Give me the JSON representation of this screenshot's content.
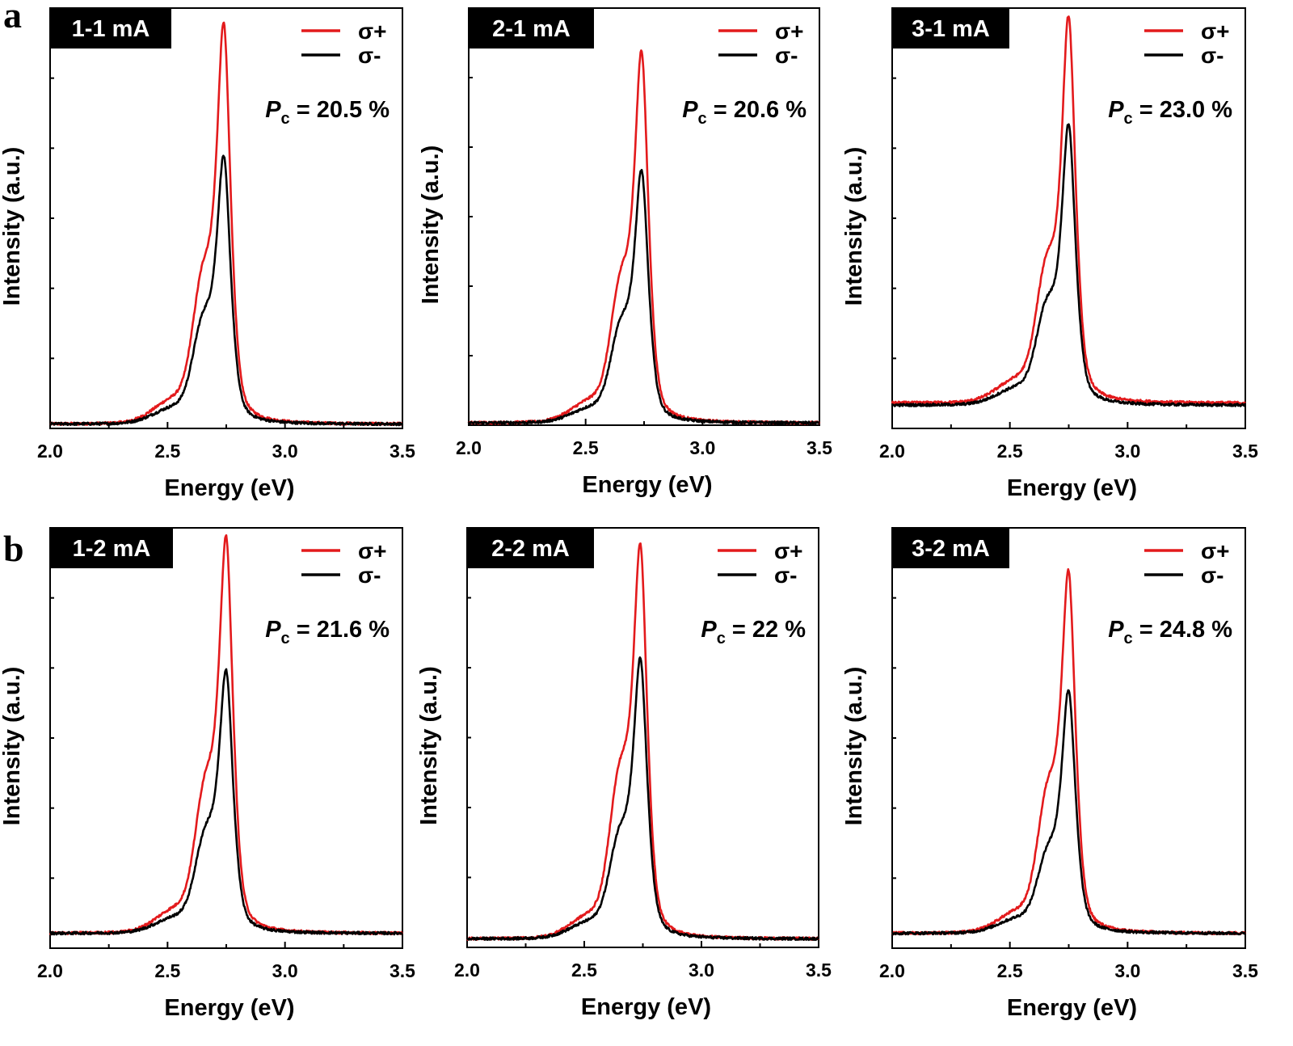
{
  "figure": {
    "panel_labels": [
      "a",
      "b"
    ],
    "colors": {
      "sigma_plus": "#e31a1c",
      "sigma_minus": "#000000",
      "tag_background": "#000000",
      "frame": "#000000"
    }
  },
  "chart_data": [
    {
      "type": "line",
      "panel": "a",
      "tag": "1-1 mA",
      "xlabel": "Energy (eV)",
      "ylabel": "Intensity (a.u.)",
      "xlim": [
        2.0,
        3.5
      ],
      "ylim": [
        0,
        1.0
      ],
      "xticks": [
        "2.0",
        "2.5",
        "3.0",
        "3.5"
      ],
      "pc_symbol": "P",
      "pc_subscript": "c",
      "pc_value": " = 20.5 %",
      "legend": [
        "σ+",
        "σ-"
      ],
      "legend_position": "top-right",
      "grid": false,
      "series": [
        {
          "name": "σ+",
          "color": "#e31a1c",
          "peak_energy": 2.74,
          "peak": 0.9,
          "shoulder_energy": 2.655,
          "shoulder": 0.3,
          "baseline": 0.01
        },
        {
          "name": "σ-",
          "color": "#000000",
          "peak_energy": 2.74,
          "peak": 0.6,
          "shoulder_energy": 2.655,
          "shoulder": 0.21,
          "baseline": 0.01
        }
      ]
    },
    {
      "type": "line",
      "panel": "a",
      "tag": "2-1 mA",
      "xlabel": "Energy (eV)",
      "ylabel": "Intensity (a.u.)",
      "xlim": [
        2.0,
        3.5
      ],
      "ylim": [
        0,
        1.0
      ],
      "xticks": [
        "2.0",
        "2.5",
        "3.0",
        "3.5"
      ],
      "pc_symbol": "P",
      "pc_subscript": "c",
      "pc_value": " = 20.6 %",
      "legend": [
        "σ+",
        "σ-"
      ],
      "legend_position": "top-right",
      "grid": false,
      "series": [
        {
          "name": "σ+",
          "color": "#e31a1c",
          "peak_energy": 2.74,
          "peak": 0.84,
          "shoulder_energy": 2.655,
          "shoulder": 0.29,
          "baseline": 0.005
        },
        {
          "name": "σ-",
          "color": "#000000",
          "peak_energy": 2.74,
          "peak": 0.57,
          "shoulder_energy": 2.655,
          "shoulder": 0.2,
          "baseline": 0.005
        }
      ]
    },
    {
      "type": "line",
      "panel": "a",
      "tag": "3-1 mA",
      "xlabel": "Energy (eV)",
      "ylabel": "Intensity (a.u.)",
      "xlim": [
        2.0,
        3.5
      ],
      "ylim": [
        0,
        1.0
      ],
      "xticks": [
        "2.0",
        "2.5",
        "3.0",
        "3.5"
      ],
      "pc_symbol": "P",
      "pc_subscript": "c",
      "pc_value": " = 23.0 %",
      "legend": [
        "σ+",
        "σ-"
      ],
      "legend_position": "top-right",
      "grid": false,
      "series": [
        {
          "name": "σ+",
          "color": "#e31a1c",
          "peak_energy": 2.75,
          "peak": 0.88,
          "shoulder_energy": 2.66,
          "shoulder": 0.28,
          "baseline": 0.06
        },
        {
          "name": "σ-",
          "color": "#000000",
          "peak_energy": 2.75,
          "peak": 0.64,
          "shoulder_energy": 2.66,
          "shoulder": 0.2,
          "baseline": 0.055
        }
      ]
    },
    {
      "type": "line",
      "panel": "b",
      "tag": "1-2 mA",
      "xlabel": "Energy (eV)",
      "ylabel": "Intensity (a.u.)",
      "xlim": [
        2.0,
        3.5
      ],
      "ylim": [
        0,
        1.0
      ],
      "xticks": [
        "2.0",
        "2.5",
        "3.0",
        "3.5"
      ],
      "pc_symbol": "P",
      "pc_subscript": "c",
      "pc_value": " = 21.6 %",
      "legend": [
        "σ+",
        "σ-"
      ],
      "legend_position": "top-right",
      "grid": false,
      "series": [
        {
          "name": "σ+",
          "color": "#e31a1c",
          "peak_energy": 2.75,
          "peak": 0.89,
          "shoulder_energy": 2.665,
          "shoulder": 0.3,
          "baseline": 0.035
        },
        {
          "name": "σ-",
          "color": "#000000",
          "peak_energy": 2.75,
          "peak": 0.59,
          "shoulder_energy": 2.665,
          "shoulder": 0.2,
          "baseline": 0.035
        }
      ]
    },
    {
      "type": "line",
      "panel": "b",
      "tag": "2-2 mA",
      "xlabel": "Energy (eV)",
      "ylabel": "Intensity (a.u.)",
      "xlim": [
        2.0,
        3.5
      ],
      "ylim": [
        0,
        1.0
      ],
      "xticks": [
        "2.0",
        "2.5",
        "3.0",
        "3.5"
      ],
      "pc_symbol": "P",
      "pc_subscript": "c",
      "pc_value": " = 22 %",
      "legend": [
        "σ+",
        "σ-"
      ],
      "legend_position": "top-right",
      "grid": false,
      "series": [
        {
          "name": "σ+",
          "color": "#e31a1c",
          "peak_energy": 2.74,
          "peak": 0.88,
          "shoulder_energy": 2.655,
          "shoulder": 0.34,
          "baseline": 0.02
        },
        {
          "name": "σ-",
          "color": "#000000",
          "peak_energy": 2.74,
          "peak": 0.63,
          "shoulder_energy": 2.655,
          "shoulder": 0.21,
          "baseline": 0.02
        }
      ]
    },
    {
      "type": "line",
      "panel": "b",
      "tag": "3-2 mA",
      "xlabel": "Energy (eV)",
      "ylabel": "Intensity (a.u.)",
      "xlim": [
        2.0,
        3.5
      ],
      "ylim": [
        0,
        1.0
      ],
      "xticks": [
        "2.0",
        "2.5",
        "3.0",
        "3.5"
      ],
      "pc_symbol": "P",
      "pc_subscript": "c",
      "pc_value": " = 24.8 %",
      "legend": [
        "σ+",
        "σ-"
      ],
      "legend_position": "top-right",
      "grid": false,
      "series": [
        {
          "name": "σ+",
          "color": "#e31a1c",
          "peak_energy": 2.75,
          "peak": 0.81,
          "shoulder_energy": 2.665,
          "shoulder": 0.29,
          "baseline": 0.035
        },
        {
          "name": "σ-",
          "color": "#000000",
          "peak_energy": 2.75,
          "peak": 0.55,
          "shoulder_energy": 2.665,
          "shoulder": 0.16,
          "baseline": 0.035
        }
      ]
    }
  ]
}
